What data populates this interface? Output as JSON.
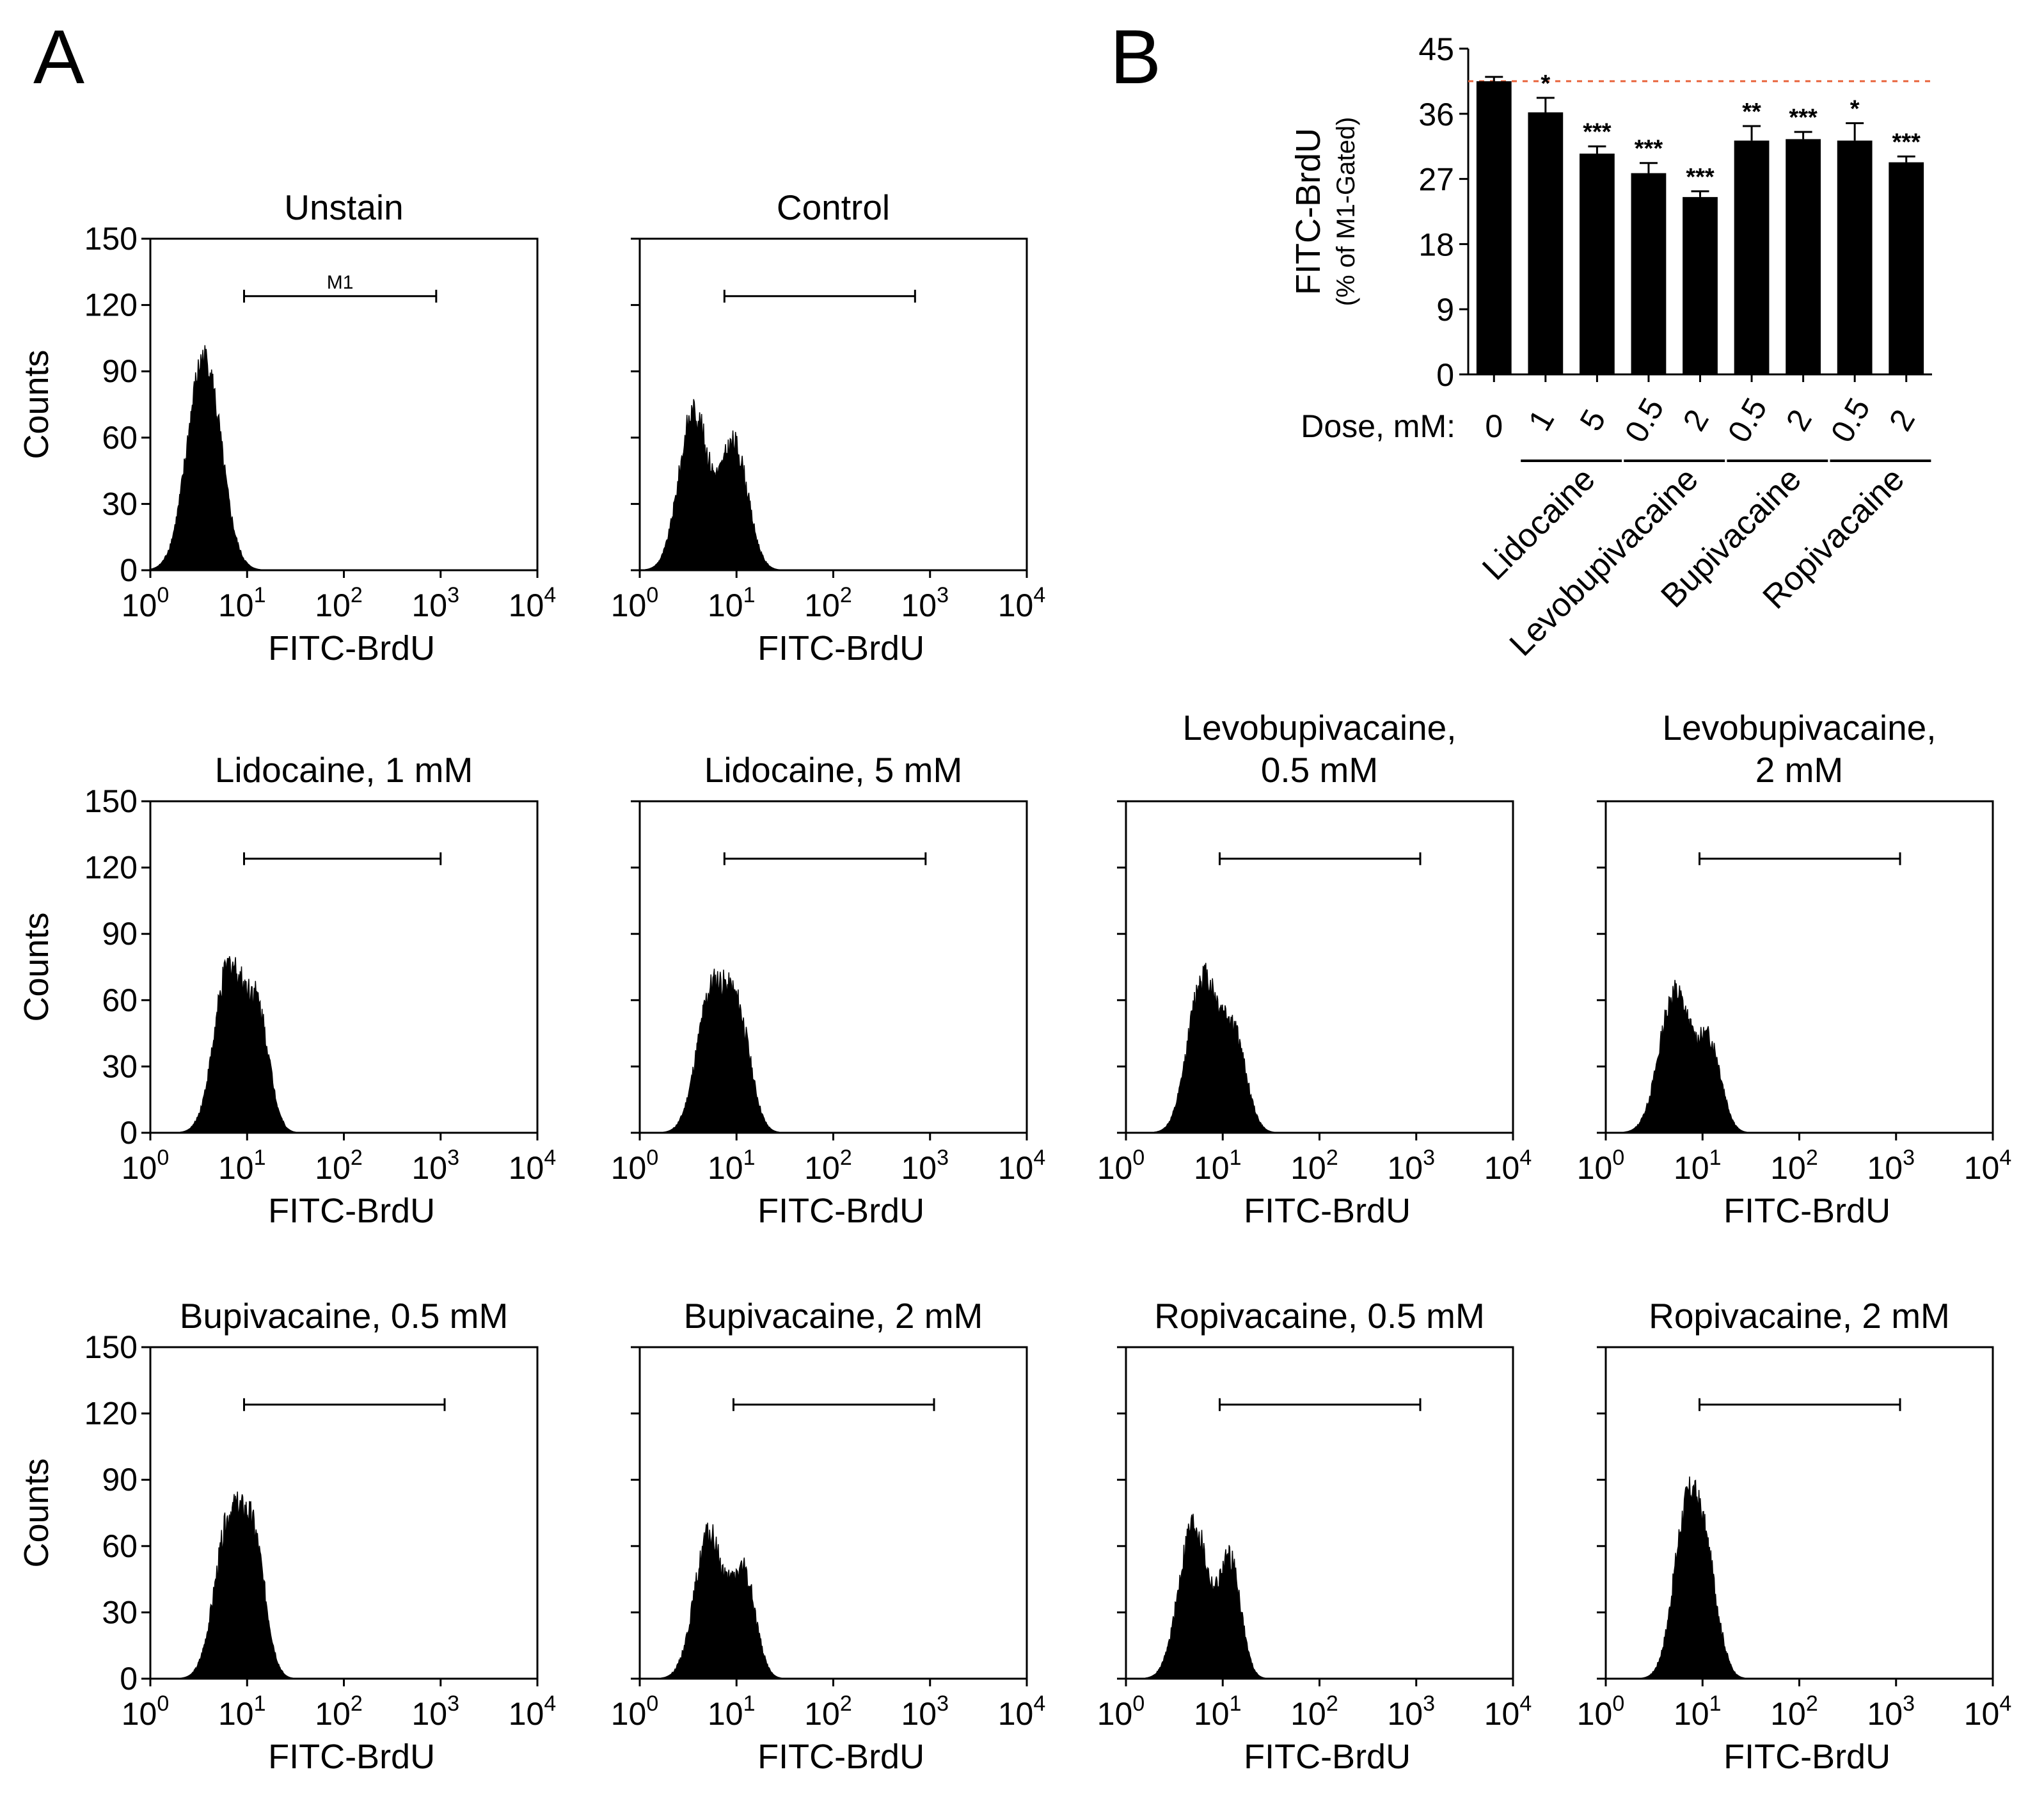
{
  "panel_labels": {
    "a": "A",
    "b": "B"
  },
  "chart_data": [
    {
      "type": "bar",
      "panel": "B",
      "ylabel": "FITC-BrdU",
      "ylabel_sub": "(% of M1-Gated)",
      "ylim": [
        0,
        45
      ],
      "yticks": [
        0,
        9,
        18,
        27,
        36,
        45
      ],
      "dose_label": "Dose, mM:",
      "reference_line": {
        "value": 40.5,
        "color": "#e8643c"
      },
      "bar_color": "#000000",
      "bars": [
        {
          "dose": "0",
          "value": 40.5,
          "err": 0.6,
          "sig": ""
        },
        {
          "dose": "1",
          "value": 36.2,
          "err": 2.0,
          "sig": "*"
        },
        {
          "dose": "5",
          "value": 30.5,
          "err": 1.0,
          "sig": "***"
        },
        {
          "dose": "0.5",
          "value": 27.8,
          "err": 1.4,
          "sig": "***"
        },
        {
          "dose": "2",
          "value": 24.5,
          "err": 0.8,
          "sig": "***"
        },
        {
          "dose": "0.5",
          "value": 32.3,
          "err": 2.0,
          "sig": "**"
        },
        {
          "dose": "2",
          "value": 32.5,
          "err": 1.0,
          "sig": "***"
        },
        {
          "dose": "0.5",
          "value": 32.3,
          "err": 2.4,
          "sig": "*"
        },
        {
          "dose": "2",
          "value": 29.3,
          "err": 0.8,
          "sig": "***"
        }
      ],
      "groups": [
        {
          "name": "Lidocaine",
          "bars": [
            1,
            2
          ]
        },
        {
          "name": "Levobupivacaine",
          "bars": [
            3,
            4
          ]
        },
        {
          "name": "Bupivacaine",
          "bars": [
            5,
            6
          ]
        },
        {
          "name": "Ropivacaine",
          "bars": [
            7,
            8
          ]
        }
      ]
    },
    {
      "type": "histogram",
      "panel": "A",
      "xlabel": "FITC-BrdU",
      "ylabel": "Counts",
      "x_scale": "log",
      "xlim": [
        1,
        10000
      ],
      "xticks": [
        {
          "base": "10",
          "exp": "0"
        },
        {
          "base": "10",
          "exp": "1"
        },
        {
          "base": "10",
          "exp": "2"
        },
        {
          "base": "10",
          "exp": "3"
        },
        {
          "base": "10",
          "exp": "4"
        }
      ],
      "ylim": [
        0,
        150
      ],
      "yticks": [
        0,
        30,
        60,
        90,
        120,
        150
      ],
      "gate_label": "M1",
      "panels": [
        {
          "title": [
            "Unstain"
          ],
          "gate": [
            9.3,
            900
          ],
          "gate_y": 124,
          "gate_label": true,
          "peaks": [
            {
              "x": 3.6,
              "h": 96,
              "s": 0.17
            }
          ],
          "noise": 1
        },
        {
          "title": [
            "Control"
          ],
          "gate": [
            7.5,
            700
          ],
          "gate_y": 124,
          "peaks": [
            {
              "x": 3.6,
              "h": 71,
              "s": 0.15
            },
            {
              "x": 9.5,
              "h": 56,
              "s": 0.14
            }
          ],
          "noise": 2
        },
        {
          "title": [
            "Lidocaine, 1 mM"
          ],
          "gate": [
            9.3,
            1000
          ],
          "gate_y": 124,
          "peaks": [
            {
              "x": 6.5,
              "h": 74,
              "s": 0.15
            },
            {
              "x": 13,
              "h": 50,
              "s": 0.12
            }
          ],
          "noise": 3
        },
        {
          "title": [
            "Lidocaine, 5 mM"
          ],
          "gate": [
            7.5,
            900
          ],
          "gate_y": 124,
          "peaks": [
            {
              "x": 5.5,
              "h": 62,
              "s": 0.15
            },
            {
              "x": 10.5,
              "h": 48,
              "s": 0.13
            }
          ],
          "noise": 4
        },
        {
          "title": [
            "Levobupivacaine,",
            "0.5 mM"
          ],
          "gate": [
            9.3,
            1100
          ],
          "gate_y": 124,
          "peaks": [
            {
              "x": 6.2,
              "h": 69,
              "s": 0.15
            },
            {
              "x": 13,
              "h": 42,
              "s": 0.13
            }
          ],
          "noise": 5
        },
        {
          "title": [
            "Levobupivacaine,",
            "2 mM"
          ],
          "gate": [
            9.3,
            1100
          ],
          "gate_y": 124,
          "peaks": [
            {
              "x": 5.2,
              "h": 63,
              "s": 0.16
            },
            {
              "x": 12,
              "h": 38,
              "s": 0.12
            }
          ],
          "noise": 6
        },
        {
          "title": [
            "Bupivacaine, 0.5 mM"
          ],
          "gate": [
            9.3,
            1100
          ],
          "gate_y": 124,
          "peaks": [
            {
              "x": 6.6,
              "h": 70,
              "s": 0.15
            },
            {
              "x": 12,
              "h": 52,
              "s": 0.12
            }
          ],
          "noise": 7
        },
        {
          "title": [
            "Bupivacaine, 2 mM"
          ],
          "gate": [
            9.3,
            1100
          ],
          "gate_y": 124,
          "peaks": [
            {
              "x": 5.2,
              "h": 64,
              "s": 0.15
            },
            {
              "x": 12,
              "h": 46,
              "s": 0.12
            }
          ],
          "noise": 8
        },
        {
          "title": [
            "Ropivacaine, 0.5 mM"
          ],
          "gate": [
            9.3,
            1100
          ],
          "gate_y": 124,
          "peaks": [
            {
              "x": 5.0,
              "h": 70,
              "s": 0.15
            },
            {
              "x": 12,
              "h": 52,
              "s": 0.11
            }
          ],
          "noise": 9
        },
        {
          "title": [
            "Ropivacaine, 2 mM"
          ],
          "gate": [
            9.3,
            1100
          ],
          "gate_y": 124,
          "peaks": [
            {
              "x": 7.0,
              "h": 76,
              "s": 0.14
            },
            {
              "x": 11.5,
              "h": 36,
              "s": 0.12
            }
          ],
          "noise": 10
        }
      ]
    }
  ]
}
